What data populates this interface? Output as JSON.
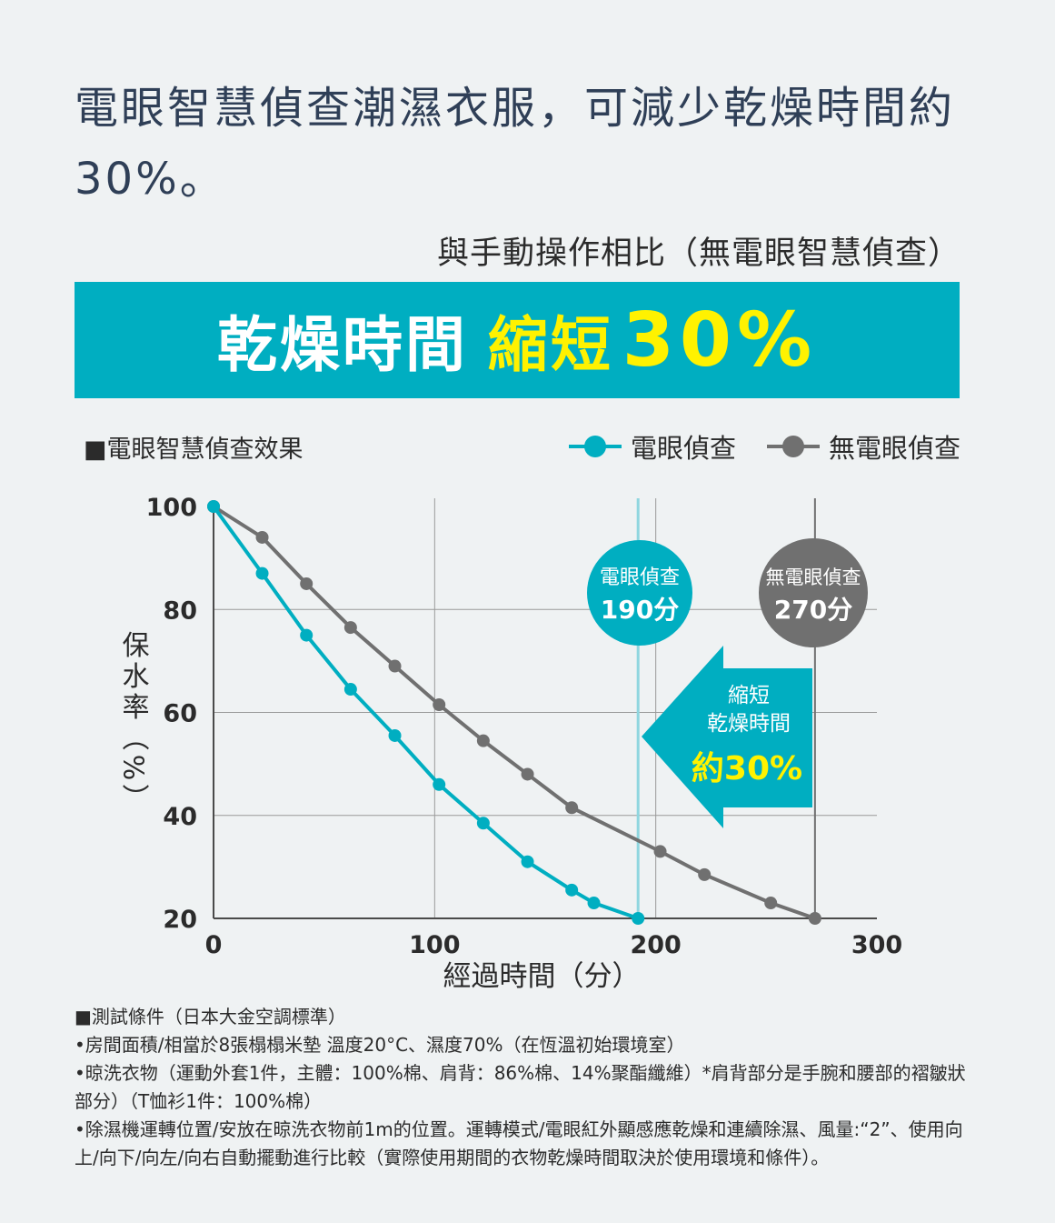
{
  "headline": "電眼智慧偵查潮濕衣服，可減少乾燥時間約30%。",
  "subhead": "與手動操作相比（無電眼智慧偵查）",
  "banner": {
    "prefix": "乾燥時間",
    "highlight": "縮短",
    "value": "30%"
  },
  "section_label": "■電眼智慧偵查效果",
  "colors": {
    "cyan": "#00aec1",
    "gray": "#707070",
    "yellow": "#fff200",
    "headline": "#2f3f57",
    "background": "#eff2f3"
  },
  "callouts": {
    "eye": {
      "line1": "電眼偵查",
      "line2": "190分"
    },
    "noeye": {
      "line1": "無電眼偵查",
      "line2": "270分"
    },
    "arrow": {
      "line1": "縮短",
      "line2": "乾燥時間",
      "line3": "約30%"
    }
  },
  "chart_data": {
    "type": "line",
    "xlabel": "經過時間（分）",
    "ylabel": "保水率（%）",
    "xlim": [
      0,
      300
    ],
    "ylim": [
      20,
      100
    ],
    "x_ticks": [
      "0",
      "100",
      "200",
      "300"
    ],
    "y_ticks": [
      "100",
      "80",
      "60",
      "40",
      "20"
    ],
    "grid": true,
    "legend_position": "top-right",
    "series": [
      {
        "name": "電眼偵查",
        "color": "#00aec1",
        "x": [
          0,
          22,
          42,
          62,
          82,
          102,
          122,
          142,
          162,
          172,
          192
        ],
        "y": [
          100,
          87,
          75,
          64.5,
          55.5,
          46,
          38.5,
          31,
          25.5,
          23,
          20
        ]
      },
      {
        "name": "無電眼偵查",
        "color": "#707070",
        "x": [
          0,
          22,
          42,
          62,
          82,
          102,
          122,
          142,
          162,
          202,
          222,
          252,
          272
        ],
        "y": [
          100,
          94,
          85,
          76.5,
          69,
          61.5,
          54.5,
          48,
          41.5,
          33,
          28.5,
          23,
          20
        ]
      }
    ],
    "markers": [
      {
        "x": 192,
        "series": "電眼偵查"
      },
      {
        "x": 272,
        "series": "無電眼偵查"
      }
    ]
  },
  "notes": [
    "■測試條件（日本大金空調標準）",
    "•房間面積/相當於8張榻榻米墊 溫度20°C、濕度70%（在恆溫初始環境室）",
    "•晾洗衣物（運動外套1件，主體：100%棉、肩背：86%棉、14%聚酯纖維）*肩背部分是手腕和腰部的褶皺狀部分）（T恤衫1件：100%棉）",
    "•除濕機運轉位置/安放在晾洗衣物前1m的位置。運轉模式/電眼紅外顯感應乾燥和連續除濕、風量:“2”、使用向上/向下/向左/向右自動擺動進行比較（實際使用期間的衣物乾燥時間取決於使用環境和條件）。"
  ]
}
